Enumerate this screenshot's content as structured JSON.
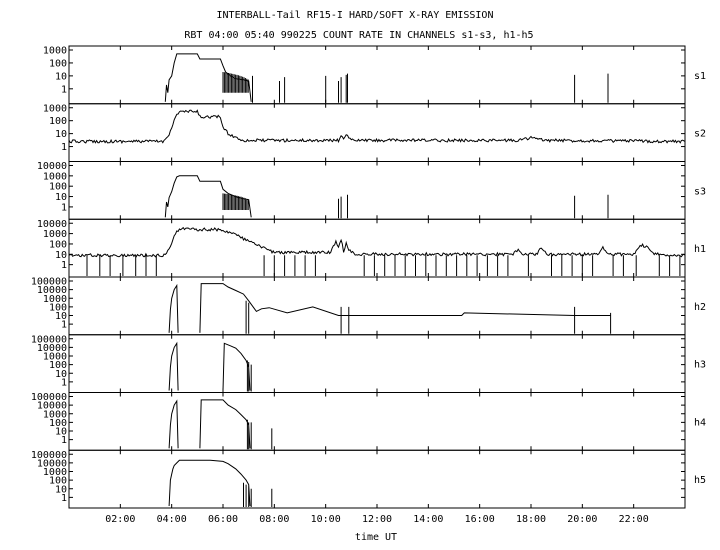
{
  "chart_data": {
    "type": "line",
    "title": "INTERBALL-Tail RF15-I HARD/SOFT X-RAY EMISSION",
    "subtitle": "RBT 04:00 05:40 990225  COUNT RATE IN CHANNELS s1-s3, h1-h5",
    "xlabel": "time UT",
    "x_unit": "hours UT",
    "xlim": [
      0,
      24
    ],
    "x_ticks": [
      {
        "value": 2,
        "label": "02:00"
      },
      {
        "value": 4,
        "label": "04:00"
      },
      {
        "value": 6,
        "label": "06:00"
      },
      {
        "value": 8,
        "label": "08:00"
      },
      {
        "value": 10,
        "label": "10:00"
      },
      {
        "value": 12,
        "label": "12:00"
      },
      {
        "value": 14,
        "label": "14:00"
      },
      {
        "value": 16,
        "label": "16:00"
      },
      {
        "value": 18,
        "label": "18:00"
      },
      {
        "value": 20,
        "label": "20:00"
      },
      {
        "value": 22,
        "label": "22:00"
      }
    ],
    "y_scale": "log",
    "grid": false,
    "panels": [
      {
        "name": "s1",
        "ylim": [
          0.1,
          1000
        ],
        "y_ticks": [
          {
            "value": 1,
            "label": "1"
          },
          {
            "value": 10,
            "label": "10"
          },
          {
            "value": 100,
            "label": "100"
          },
          {
            "value": 1000,
            "label": "1000"
          }
        ],
        "x": [
          3.75,
          3.8,
          3.85,
          3.9,
          4.0,
          4.1,
          4.2,
          4.3,
          4.4,
          4.5,
          4.6,
          4.75,
          5.0,
          5.1,
          5.2,
          5.5,
          5.9,
          6.0,
          6.1,
          6.3,
          6.5,
          6.8,
          7.0,
          7.1
        ],
        "y": [
          0.1,
          2,
          0.5,
          5,
          10,
          100,
          500,
          500,
          500,
          500,
          500,
          500,
          500,
          200,
          200,
          200,
          200,
          60,
          20,
          10,
          6,
          5,
          4,
          0.1
        ],
        "spikes": [
          {
            "x": 7.15,
            "y": 10
          },
          {
            "x": 8.2,
            "y": 4
          },
          {
            "x": 8.4,
            "y": 8
          },
          {
            "x": 10.0,
            "y": 10
          },
          {
            "x": 10.5,
            "y": 4
          },
          {
            "x": 10.6,
            "y": 8
          },
          {
            "x": 10.8,
            "y": 12
          },
          {
            "x": 10.85,
            "y": 15
          },
          {
            "x": 19.7,
            "y": 12
          },
          {
            "x": 21.0,
            "y": 15
          }
        ]
      },
      {
        "name": "s2",
        "ylim": [
          0.1,
          1000
        ],
        "y_ticks": [
          {
            "value": 1,
            "label": "1"
          },
          {
            "value": 10,
            "label": "10"
          },
          {
            "value": 100,
            "label": "100"
          },
          {
            "value": 1000,
            "label": "1000"
          }
        ],
        "baseline": 2.5,
        "x": [
          0,
          3.7,
          3.8,
          3.9,
          4.0,
          4.1,
          4.2,
          4.3,
          4.4,
          4.5,
          4.75,
          5.0,
          5.1,
          5.2,
          5.5,
          5.9,
          6.0,
          6.2,
          6.5,
          6.8,
          7.0,
          10.5,
          10.6,
          10.7,
          10.8,
          11.0,
          17.5,
          18.0,
          18.5,
          24
        ],
        "y": [
          2.5,
          2.5,
          5,
          10,
          30,
          100,
          300,
          500,
          500,
          500,
          500,
          500,
          200,
          200,
          200,
          200,
          30,
          10,
          5,
          3,
          3,
          3,
          8,
          3,
          10,
          3,
          3,
          5,
          3,
          2.5
        ],
        "spikes": []
      },
      {
        "name": "s3",
        "ylim": [
          0.1,
          10000
        ],
        "y_ticks": [
          {
            "value": 1,
            "label": "1"
          },
          {
            "value": 10,
            "label": "10"
          },
          {
            "value": 100,
            "label": "100"
          },
          {
            "value": 1000,
            "label": "1000"
          },
          {
            "value": 10000,
            "label": "10000"
          }
        ],
        "x": [
          3.75,
          3.8,
          3.85,
          3.9,
          4.0,
          4.1,
          4.2,
          4.3,
          4.4,
          4.5,
          4.75,
          5.0,
          5.1,
          5.2,
          5.5,
          5.9,
          6.0,
          6.2,
          6.5,
          6.8,
          7.0,
          7.1
        ],
        "y": [
          0.1,
          3,
          1,
          8,
          30,
          200,
          800,
          1000,
          1000,
          1000,
          1000,
          1000,
          300,
          300,
          300,
          300,
          50,
          20,
          10,
          6,
          5,
          0.1
        ],
        "spikes": [
          {
            "x": 10.5,
            "y": 6
          },
          {
            "x": 10.6,
            "y": 10
          },
          {
            "x": 10.85,
            "y": 15
          },
          {
            "x": 19.7,
            "y": 12
          },
          {
            "x": 21.0,
            "y": 15
          }
        ]
      },
      {
        "name": "h1",
        "ylim": [
          0.1,
          10000
        ],
        "y_ticks": [
          {
            "value": 1,
            "label": "1"
          },
          {
            "value": 10,
            "label": "10"
          },
          {
            "value": 100,
            "label": "100"
          },
          {
            "value": 1000,
            "label": "1000"
          },
          {
            "value": 10000,
            "label": "10000"
          }
        ],
        "baseline": 8,
        "x": [
          0,
          3.7,
          3.8,
          3.9,
          4.0,
          4.1,
          4.3,
          4.5,
          4.75,
          5.0,
          5.5,
          5.9,
          6.0,
          6.2,
          6.5,
          6.7,
          7.0,
          7.2,
          7.5,
          8.0,
          10.2,
          10.4,
          10.5,
          10.6,
          10.7,
          10.8,
          10.9,
          11.0,
          11.2,
          17.3,
          17.5,
          17.7,
          18.2,
          18.4,
          18.6,
          20.6,
          20.8,
          21.0,
          22.0,
          22.3,
          22.5,
          22.8,
          24
        ],
        "y": [
          8,
          8,
          15,
          40,
          150,
          800,
          2500,
          3000,
          3000,
          2500,
          2500,
          2500,
          2000,
          1500,
          800,
          400,
          200,
          100,
          50,
          15,
          15,
          200,
          40,
          300,
          20,
          100,
          30,
          15,
          10,
          10,
          30,
          10,
          10,
          40,
          10,
          10,
          50,
          10,
          10,
          80,
          50,
          10,
          8
        ],
        "dropouts": [
          0.7,
          1.2,
          1.6,
          2.1,
          2.6,
          3.0,
          3.4,
          7.6,
          8.0,
          8.4,
          8.8,
          9.2,
          9.6,
          11.5,
          11.9,
          12.3,
          12.7,
          13.1,
          13.5,
          13.9,
          14.3,
          14.7,
          15.1,
          15.5,
          15.9,
          16.3,
          16.7,
          17.1,
          17.9,
          18.8,
          19.2,
          19.6,
          20.0,
          20.4,
          21.2,
          21.6,
          22.1,
          23.0,
          23.4,
          23.8
        ]
      },
      {
        "name": "h2",
        "ylim": [
          0.1,
          100000
        ],
        "y_ticks": [
          {
            "value": 1,
            "label": "1"
          },
          {
            "value": 10,
            "label": "10"
          },
          {
            "value": 100,
            "label": "100"
          },
          {
            "value": 1000,
            "label": "1000"
          },
          {
            "value": 10000,
            "label": "10000"
          },
          {
            "value": 100000,
            "label": "100000"
          }
        ],
        "segments": [
          {
            "x": [
              3.9,
              3.95,
              4.0,
              4.1,
              4.2,
              4.25
            ],
            "y": [
              0.1,
              50,
              1000,
              10000,
              30000,
              0.1
            ]
          },
          {
            "x": [
              5.1,
              5.15,
              5.5,
              6.0,
              6.2,
              6.5,
              6.8,
              7.0,
              7.3,
              7.5,
              7.8,
              8.5,
              9.5,
              10.5,
              15.3,
              15.4,
              19.7,
              21.1
            ],
            "y": [
              0.1,
              50000,
              50000,
              50000,
              20000,
              8000,
              3000,
              500,
              30,
              60,
              80,
              20,
              100,
              10,
              10,
              20,
              10,
              10
            ]
          }
        ],
        "spikes": [
          {
            "x": 6.9,
            "y": 500
          },
          {
            "x": 7.0,
            "y": 300
          },
          {
            "x": 10.6,
            "y": 100
          },
          {
            "x": 10.9,
            "y": 100
          },
          {
            "x": 19.7,
            "y": 100
          },
          {
            "x": 21.1,
            "y": 20
          }
        ]
      },
      {
        "name": "h3",
        "ylim": [
          0.1,
          100000
        ],
        "y_ticks": [
          {
            "value": 1,
            "label": "1"
          },
          {
            "value": 10,
            "label": "10"
          },
          {
            "value": 100,
            "label": "100"
          },
          {
            "value": 1000,
            "label": "1000"
          },
          {
            "value": 10000,
            "label": "10000"
          },
          {
            "value": 100000,
            "label": "100000"
          }
        ],
        "segments": [
          {
            "x": [
              3.9,
              3.95,
              4.0,
              4.1,
              4.2,
              4.25
            ],
            "y": [
              0.1,
              50,
              1000,
              10000,
              30000,
              0.1
            ]
          },
          {
            "x": [
              6.0,
              6.05,
              6.3,
              6.5,
              6.7,
              6.9,
              7.0,
              7.05
            ],
            "y": [
              0.1,
              30000,
              15000,
              8000,
              2000,
              300,
              50,
              0.1
            ]
          }
        ],
        "spikes": [
          {
            "x": 6.95,
            "y": 300
          },
          {
            "x": 7.0,
            "y": 200
          },
          {
            "x": 7.1,
            "y": 100
          }
        ]
      },
      {
        "name": "h4",
        "ylim": [
          0.1,
          100000
        ],
        "y_ticks": [
          {
            "value": 1,
            "label": "1"
          },
          {
            "value": 10,
            "label": "10"
          },
          {
            "value": 100,
            "label": "100"
          },
          {
            "value": 1000,
            "label": "1000"
          },
          {
            "value": 10000,
            "label": "10000"
          },
          {
            "value": 100000,
            "label": "100000"
          }
        ],
        "segments": [
          {
            "x": [
              3.9,
              3.95,
              4.0,
              4.1,
              4.2,
              4.25
            ],
            "y": [
              0.1,
              50,
              1000,
              10000,
              30000,
              0.1
            ]
          },
          {
            "x": [
              5.1,
              5.15,
              5.5,
              6.0,
              6.2,
              6.5,
              6.7,
              6.9,
              7.0,
              7.05
            ],
            "y": [
              0.1,
              40000,
              40000,
              40000,
              10000,
              3000,
              800,
              200,
              50,
              0.1
            ]
          }
        ],
        "spikes": [
          {
            "x": 6.95,
            "y": 200
          },
          {
            "x": 7.0,
            "y": 100
          },
          {
            "x": 7.1,
            "y": 100
          },
          {
            "x": 7.9,
            "y": 20
          }
        ]
      },
      {
        "name": "h5",
        "ylim": [
          0.1,
          100000
        ],
        "y_ticks": [
          {
            "value": 1,
            "label": "1"
          },
          {
            "value": 10,
            "label": "10"
          },
          {
            "value": 100,
            "label": "100"
          },
          {
            "value": 1000,
            "label": "1000"
          },
          {
            "value": 10000,
            "label": "10000"
          },
          {
            "value": 100000,
            "label": "100000"
          }
        ],
        "segments": [
          {
            "x": [
              3.9,
              3.95,
              4.0,
              4.05,
              4.1,
              4.2,
              4.3,
              4.5,
              5.0,
              5.5,
              6.0,
              6.2,
              6.5,
              6.7,
              6.9,
              7.0,
              7.05
            ],
            "y": [
              0.1,
              100,
              500,
              2000,
              5000,
              10000,
              20000,
              20000,
              20000,
              20000,
              15000,
              8000,
              2000,
              500,
              100,
              30,
              0.1
            ]
          }
        ],
        "spikes": [
          {
            "x": 6.8,
            "y": 50
          },
          {
            "x": 6.9,
            "y": 30
          },
          {
            "x": 7.0,
            "y": 20
          },
          {
            "x": 7.1,
            "y": 10
          },
          {
            "x": 7.9,
            "y": 10
          }
        ]
      }
    ]
  }
}
